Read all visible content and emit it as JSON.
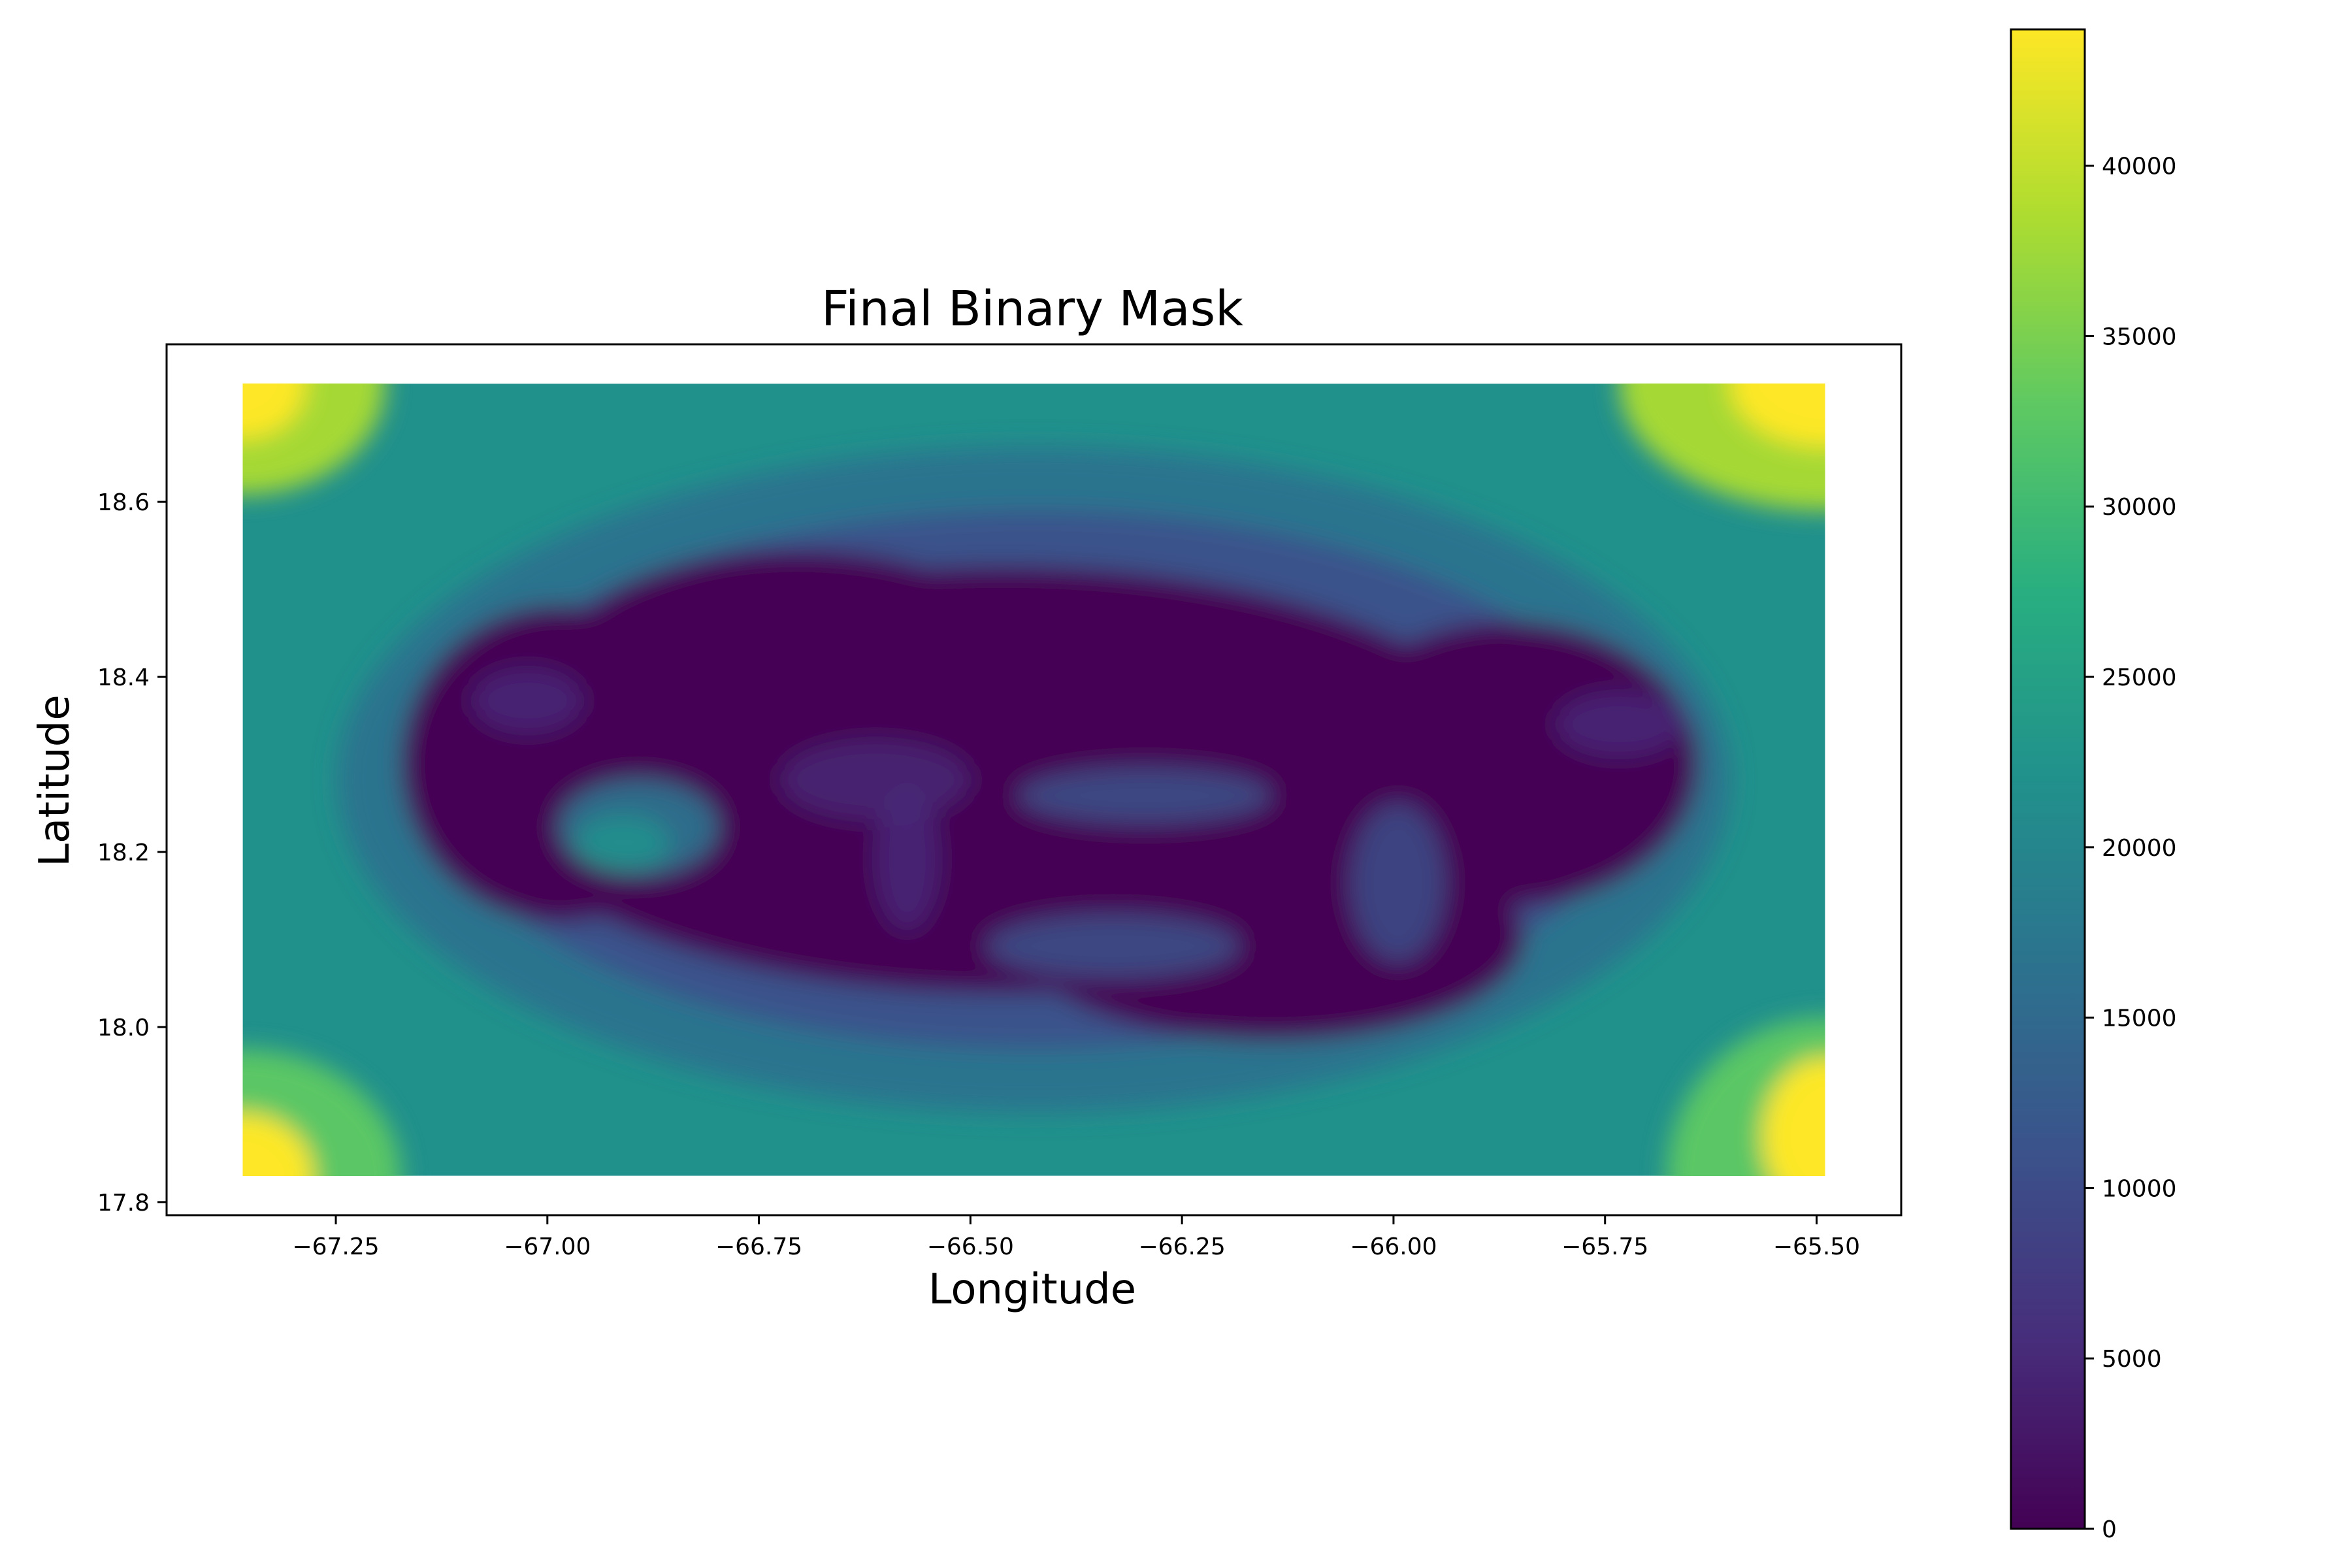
{
  "chart_data": {
    "type": "heatmap",
    "title": "Final Binary Mask",
    "xlabel": "Longitude",
    "ylabel": "Latitude",
    "xlim": [
      -67.45,
      -65.4
    ],
    "ylim": [
      17.785,
      18.78
    ],
    "data_extent": {
      "x": [
        -67.36,
        -65.49
      ],
      "y": [
        17.83,
        18.735
      ]
    },
    "x_ticks": [
      -67.25,
      -67.0,
      -66.75,
      -66.5,
      -66.25,
      -66.0,
      -65.75,
      -65.5
    ],
    "x_tick_labels": [
      "−67.25",
      "−67.00",
      "−66.75",
      "−66.50",
      "−66.25",
      "−66.00",
      "−65.75",
      "−65.50"
    ],
    "y_ticks": [
      17.8,
      18.0,
      18.2,
      18.4,
      18.6
    ],
    "y_tick_labels": [
      "17.8",
      "18.0",
      "18.2",
      "18.4",
      "18.6"
    ],
    "colormap": "viridis",
    "colorbar": {
      "min": 0,
      "max": 44000,
      "ticks": [
        0,
        5000,
        10000,
        15000,
        20000,
        25000,
        30000,
        35000,
        40000
      ],
      "tick_labels": [
        "0",
        "5000",
        "10000",
        "15000",
        "20000",
        "25000",
        "30000",
        "35000",
        "40000"
      ]
    },
    "grid": false,
    "corner_values": {
      "top-left": 44000,
      "top-right": 44000,
      "bottom-left": 42000,
      "bottom-right": 42000
    },
    "interior_value_range": [
      0,
      12000
    ],
    "colors": {
      "viridis_min": "#440154",
      "viridis_mid": "#21918c",
      "viridis_max": "#fde725"
    }
  }
}
